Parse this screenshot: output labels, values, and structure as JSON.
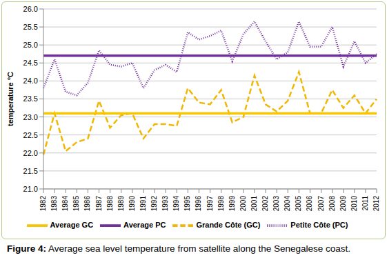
{
  "chart_data": {
    "type": "line",
    "title": "Figure 4: Average sea level temperature from satellite along the Senegalese coast.",
    "y_label": "temperature °C",
    "categories": [
      "1982",
      "1983",
      "1984",
      "1985",
      "1986",
      "1987",
      "1988",
      "1989",
      "1990",
      "1991",
      "1992",
      "1993",
      "1994",
      "1995",
      "1996",
      "1997",
      "1998",
      "1999",
      "2000",
      "2001",
      "2002",
      "2003",
      "2004",
      "2005",
      "2006",
      "2007",
      "2008",
      "2009",
      "2010",
      "2011",
      "2012"
    ],
    "series": [
      {
        "name": "Grande Côte (GC)",
        "color": "#f2b705",
        "line_style": "dashed",
        "values": [
          21.95,
          23.1,
          22.05,
          22.3,
          22.4,
          23.45,
          22.7,
          23.05,
          23.1,
          22.4,
          22.8,
          22.8,
          22.75,
          23.8,
          23.4,
          23.35,
          23.75,
          22.85,
          23.0,
          24.15,
          23.35,
          23.15,
          23.45,
          24.25,
          23.1,
          23.1,
          23.75,
          23.25,
          23.6,
          23.1,
          23.5
        ]
      },
      {
        "name": "Petite Côte (PC)",
        "color": "#7030a0",
        "line_style": "dotted",
        "values": [
          23.8,
          24.6,
          23.7,
          23.6,
          23.95,
          24.85,
          24.45,
          24.4,
          24.5,
          23.8,
          24.3,
          24.45,
          24.25,
          25.35,
          25.15,
          25.25,
          25.4,
          24.55,
          25.3,
          25.65,
          25.1,
          24.6,
          24.8,
          25.65,
          24.95,
          24.95,
          25.5,
          24.4,
          25.1,
          24.5,
          24.75
        ]
      },
      {
        "name": "Average GC",
        "color": "#f7c600",
        "line_style": "solid",
        "values": [
          23.1,
          23.1,
          23.1,
          23.1,
          23.1,
          23.1,
          23.1,
          23.1,
          23.1,
          23.1,
          23.1,
          23.1,
          23.1,
          23.1,
          23.1,
          23.1,
          23.1,
          23.1,
          23.1,
          23.1,
          23.1,
          23.1,
          23.1,
          23.1,
          23.1,
          23.1,
          23.1,
          23.1,
          23.1,
          23.1,
          23.1
        ]
      },
      {
        "name": "Average PC",
        "color": "#7030a0",
        "line_style": "solid",
        "values": [
          24.7,
          24.7,
          24.7,
          24.7,
          24.7,
          24.7,
          24.7,
          24.7,
          24.7,
          24.7,
          24.7,
          24.7,
          24.7,
          24.7,
          24.7,
          24.7,
          24.7,
          24.7,
          24.7,
          24.7,
          24.7,
          24.7,
          24.7,
          24.7,
          24.7,
          24.7,
          24.7,
          24.7,
          24.7,
          24.7,
          24.7
        ]
      }
    ],
    "ylim": [
      21,
      26
    ],
    "yticks": [
      {
        "value": 21,
        "label": "21.0"
      },
      21.5,
      {
        "value": 22,
        "label": "22.0"
      },
      22.5,
      {
        "value": 23,
        "label": "23.0"
      },
      23.5,
      {
        "value": 24,
        "label": "24.0"
      },
      24.5,
      {
        "value": 25,
        "label": "25.0"
      },
      25.5,
      {
        "value": 26,
        "label": "26.0"
      }
    ],
    "grid": true,
    "legend": "bottom"
  }
}
